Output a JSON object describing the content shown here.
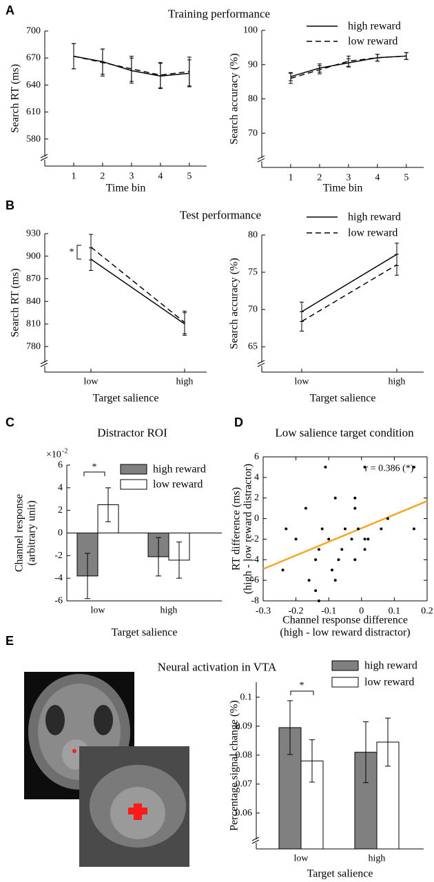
{
  "panels": [
    {
      "label": "A",
      "title": "Training performance"
    },
    {
      "label": "B",
      "title": "Test performance"
    },
    {
      "label": "C",
      "title": "Distractor ROI"
    },
    {
      "label": "D",
      "title": "Low salience target condition"
    },
    {
      "label": "E",
      "title": "Neural activation in VTA"
    }
  ],
  "chart_data": [
    {
      "type": "line",
      "x": [
        1,
        2,
        3,
        4,
        5
      ],
      "xlim": [
        0,
        5.6
      ],
      "xticks": [
        1,
        2,
        3,
        4,
        5
      ],
      "ylim": [
        550,
        700
      ],
      "yticks": [
        580,
        610,
        640,
        670,
        700
      ],
      "axis_break": true,
      "x_label": "Time bin",
      "y_label": "Search RT (ms)",
      "series": [
        {
          "color": "#000000",
          "dash": false,
          "values": [
            672,
            666,
            656,
            650,
            653
          ],
          "errors": [
            14,
            14,
            14,
            14,
            15
          ]
        },
        {
          "color": "#000000",
          "dash": true,
          "values": [
            672,
            665,
            658,
            651,
            655
          ],
          "errors": [
            14,
            15,
            14,
            14,
            16
          ]
        }
      ]
    },
    {
      "type": "line",
      "x": [
        1,
        2,
        3,
        4,
        5
      ],
      "xlim": [
        0,
        5.6
      ],
      "xticks": [
        1,
        2,
        3,
        4,
        5
      ],
      "ylim": [
        60,
        100
      ],
      "yticks": [
        70,
        80,
        90,
        100
      ],
      "axis_break": true,
      "legend": "upper right",
      "x_label": "Time bin",
      "y_label": "Search accuracy (%)",
      "series": [
        {
          "name": "high reward",
          "color": "#000000",
          "dash": false,
          "values": [
            86.5,
            89,
            90.5,
            92,
            92.5
          ],
          "errors": [
            1.2,
            1.2,
            1.2,
            1,
            1
          ]
        },
        {
          "name": "low reward",
          "color": "#000000",
          "dash": true,
          "values": [
            86,
            88.5,
            91,
            92,
            92.5
          ],
          "errors": [
            1.5,
            1.2,
            1.5,
            1,
            1
          ]
        }
      ]
    },
    {
      "type": "line",
      "categories": [
        "low",
        "high"
      ],
      "ylim": [
        746,
        930
      ],
      "yticks": [
        780,
        810,
        840,
        870,
        900,
        930
      ],
      "axis_break": true,
      "x_label": "Target salience",
      "y_label": "Search RT (ms)",
      "annotation": "*",
      "series": [
        {
          "color": "#000000",
          "dash": false,
          "values": [
            896,
            810
          ],
          "errors": [
            15,
            15
          ]
        },
        {
          "color": "#000000",
          "dash": true,
          "values": [
            912,
            812
          ],
          "errors": [
            17,
            15
          ]
        }
      ]
    },
    {
      "type": "line",
      "categories": [
        "low",
        "high"
      ],
      "ylim": [
        61.6,
        80
      ],
      "yticks": [
        65,
        70,
        75,
        80
      ],
      "axis_break": true,
      "legend": "upper right",
      "x_label": "Target salience",
      "y_label": "Search accuracy (%)",
      "series": [
        {
          "name": "high reward",
          "color": "#000000",
          "dash": false,
          "values": [
            69.7,
            77.4
          ],
          "errors": [
            1.3,
            1.5
          ]
        },
        {
          "name": "low reward",
          "color": "#000000",
          "dash": true,
          "values": [
            68.4,
            76
          ],
          "errors": [
            1.3,
            1.4
          ]
        }
      ]
    },
    {
      "type": "bar",
      "categories": [
        "low",
        "high"
      ],
      "ylim": [
        -6,
        6
      ],
      "yticks": [
        -6,
        -4,
        -2,
        0,
        2,
        4,
        6
      ],
      "legend": "upper right",
      "y_multiplier": "×10",
      "y_multiplier_exponent": "-2",
      "x_label": "Target salience",
      "y_label": [
        "Channel response",
        "(arbitrary unit)"
      ],
      "annotation": "*",
      "series": [
        {
          "name": "high reward",
          "color": "#808080",
          "values": [
            -3.8,
            -2.1
          ],
          "errors": [
            2,
            1.7
          ]
        },
        {
          "name": "low reward",
          "color": "#ffffff",
          "values": [
            2.5,
            -2.4
          ],
          "errors": [
            1.5,
            1.6
          ]
        }
      ]
    },
    {
      "type": "scatter",
      "box": true,
      "xlim": [
        -0.3,
        0.2
      ],
      "xticks": [
        -0.3,
        -0.2,
        -0.1,
        0,
        0.1,
        0.2
      ],
      "ylim": [
        -8,
        6
      ],
      "yticks": [
        -8,
        -6,
        -4,
        -2,
        0,
        2,
        4,
        6
      ],
      "x_label": [
        "Channel response difference",
        "(high - low reward distractor)"
      ],
      "y_label": [
        "RT difference (ms)",
        "(high - low reward distractor)"
      ],
      "annotation": "r = 0.386 (*)",
      "color": "#000000",
      "x": [
        -0.24,
        -0.23,
        -0.2,
        -0.16,
        -0.17,
        -0.14,
        -0.13,
        -0.14,
        -0.12,
        -0.11,
        -0.1,
        -0.09,
        -0.08,
        -0.08,
        -0.07,
        -0.06,
        -0.05,
        -0.03,
        -0.02,
        -0.02,
        -0.02,
        -0.01,
        0.01,
        0.01,
        0.01,
        0.02,
        0.06,
        0.08,
        0.16,
        0.16,
        -0.13
      ],
      "values": [
        -5,
        -1,
        -2,
        -6,
        1,
        -4,
        -3,
        -7,
        -1,
        5,
        -2,
        -5,
        -6,
        2,
        -4,
        -3,
        -1,
        -2,
        2,
        1,
        -4,
        -1,
        -2,
        -3,
        5,
        -2,
        -1,
        0,
        5,
        -1,
        -8
      ],
      "fit": {
        "color": "#f5a623",
        "x": [
          -0.3,
          0.2
        ],
        "y": [
          -4.9,
          1.7
        ]
      }
    },
    {
      "type": "bar",
      "categories": [
        "low",
        "high"
      ],
      "ylim": [
        0.0476,
        0.1052
      ],
      "yticks": [
        0.06,
        0.07,
        0.08,
        0.09,
        0.1
      ],
      "axis_break": true,
      "legend": "upper right",
      "x_label": "Target salience",
      "y_label": "Percentage signal change (%)",
      "annotation": "*",
      "series": [
        {
          "name": "high reward",
          "color": "#808080",
          "values": [
            0.0895,
            0.081
          ],
          "errors": [
            0.0093,
            0.0105
          ]
        },
        {
          "name": "low reward",
          "color": "#ffffff",
          "values": [
            0.078,
            0.0845
          ],
          "errors": [
            0.0073,
            0.0083
          ]
        }
      ]
    }
  ]
}
